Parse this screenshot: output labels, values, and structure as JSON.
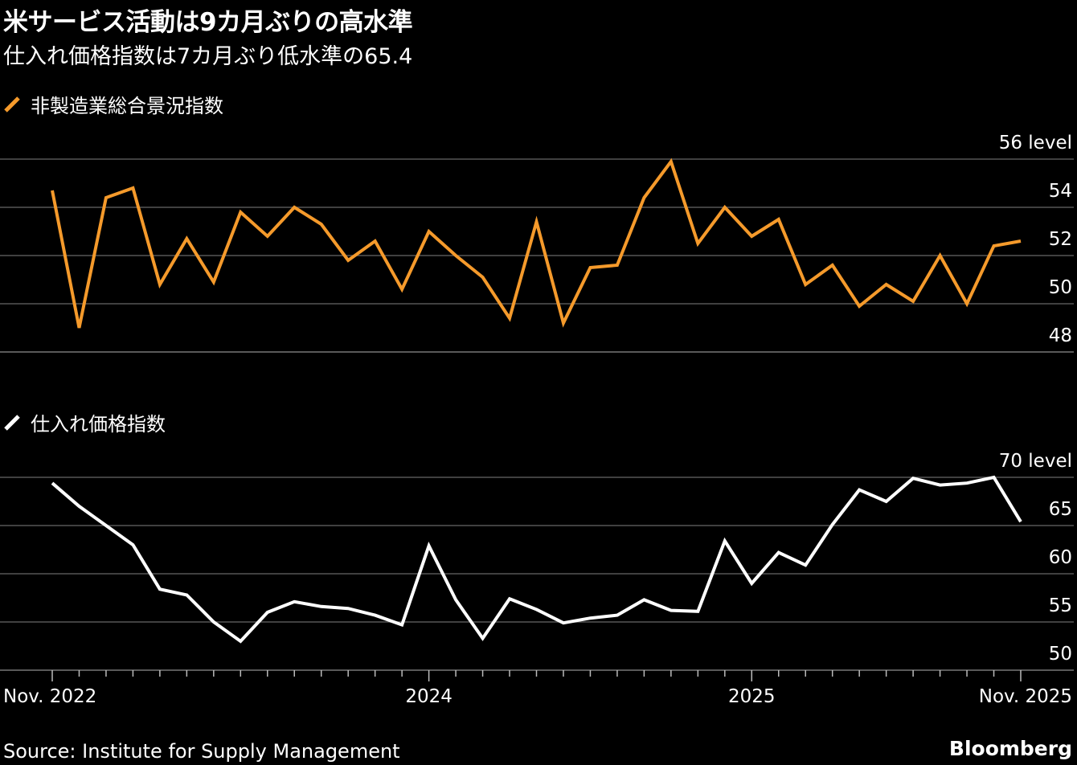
{
  "header": {
    "title": "米サービス活動は9カ月ぶりの高水準",
    "subtitle": "仕入れ価格指数は7カ月ぶり低水準の65.4"
  },
  "footer": {
    "source": "Source: Institute for Supply Management",
    "brand": "Bloomberg"
  },
  "colors": {
    "orange": "#f59a2b",
    "white": "#ffffff",
    "grid": "#555555",
    "background": "#000000"
  },
  "chart_data": [
    {
      "type": "line",
      "legend": "非製造業総合景況指数",
      "series_color": "#f59a2b",
      "x": [
        "2022-11",
        "2022-12",
        "2023-01",
        "2023-02",
        "2023-03",
        "2023-04",
        "2023-05",
        "2023-06",
        "2023-07",
        "2023-08",
        "2023-09",
        "2023-10",
        "2023-11",
        "2023-12",
        "2024-01",
        "2024-02",
        "2024-03",
        "2024-04",
        "2024-05",
        "2024-06",
        "2024-07",
        "2024-08",
        "2024-09",
        "2024-10",
        "2024-11",
        "2024-12",
        "2025-01",
        "2025-02",
        "2025-03",
        "2025-04",
        "2025-05",
        "2025-06",
        "2025-07",
        "2025-08",
        "2025-09",
        "2025-10",
        "2025-11"
      ],
      "values": [
        54.7,
        49.0,
        54.4,
        54.8,
        50.8,
        52.7,
        50.9,
        53.8,
        52.8,
        54.0,
        53.3,
        51.8,
        52.6,
        50.6,
        53.0,
        52.0,
        51.1,
        49.4,
        53.4,
        49.2,
        51.5,
        51.6,
        54.4,
        55.9,
        52.5,
        54.0,
        52.8,
        53.5,
        50.8,
        51.6,
        49.9,
        50.8,
        50.1,
        52.0,
        50.0,
        52.4,
        52.6
      ],
      "ylim": [
        48,
        56
      ],
      "yticks": [
        {
          "value": 56,
          "label": "56 level"
        },
        {
          "value": 54,
          "label": "54"
        },
        {
          "value": 52,
          "label": "52"
        },
        {
          "value": 50,
          "label": "50"
        },
        {
          "value": 48,
          "label": "48"
        }
      ]
    },
    {
      "type": "line",
      "legend": "仕入れ価格指数",
      "series_color": "#ffffff",
      "x": [
        "2022-11",
        "2022-12",
        "2023-01",
        "2023-02",
        "2023-03",
        "2023-04",
        "2023-05",
        "2023-06",
        "2023-07",
        "2023-08",
        "2023-09",
        "2023-10",
        "2023-11",
        "2023-12",
        "2024-01",
        "2024-02",
        "2024-03",
        "2024-04",
        "2024-05",
        "2024-06",
        "2024-07",
        "2024-08",
        "2024-09",
        "2024-10",
        "2024-11",
        "2024-12",
        "2025-01",
        "2025-02",
        "2025-03",
        "2025-04",
        "2025-05",
        "2025-06",
        "2025-07",
        "2025-08",
        "2025-09",
        "2025-10",
        "2025-11"
      ],
      "values": [
        69.4,
        67.0,
        65.0,
        63.0,
        58.4,
        57.8,
        55.0,
        53.0,
        56.0,
        57.1,
        56.6,
        56.4,
        55.7,
        54.7,
        62.9,
        57.3,
        53.3,
        57.4,
        56.3,
        54.9,
        55.4,
        55.7,
        57.3,
        56.2,
        56.1,
        63.4,
        59.0,
        62.2,
        60.9,
        65.1,
        68.7,
        67.5,
        69.9,
        69.2,
        69.4,
        70.0,
        65.4
      ],
      "ylim": [
        50,
        70
      ],
      "yticks": [
        {
          "value": 70,
          "label": "70 level"
        },
        {
          "value": 65,
          "label": "65"
        },
        {
          "value": 60,
          "label": "60"
        },
        {
          "value": 55,
          "label": "55"
        },
        {
          "value": 50,
          "label": "50"
        }
      ]
    }
  ],
  "xaxis": {
    "tick_months": [
      "2022-11",
      "2022-12",
      "2023-01",
      "2023-02",
      "2023-03",
      "2023-04",
      "2023-05",
      "2023-06",
      "2023-07",
      "2023-08",
      "2023-09",
      "2023-10",
      "2023-11",
      "2023-12",
      "2024-01",
      "2024-02",
      "2024-03",
      "2024-04",
      "2024-05",
      "2024-06",
      "2024-07",
      "2024-08",
      "2024-09",
      "2024-10",
      "2024-11",
      "2024-12",
      "2025-01",
      "2025-02",
      "2025-03",
      "2025-04",
      "2025-05",
      "2025-06",
      "2025-07",
      "2025-08",
      "2025-09",
      "2025-10",
      "2025-11"
    ],
    "labels": [
      {
        "month": "2022-11",
        "text": "Nov. 2022"
      },
      {
        "month": "2024-01",
        "text": "2024"
      },
      {
        "month": "2025-01",
        "text": "2025"
      },
      {
        "month": "2025-11",
        "text": "Nov. 2025"
      }
    ]
  }
}
